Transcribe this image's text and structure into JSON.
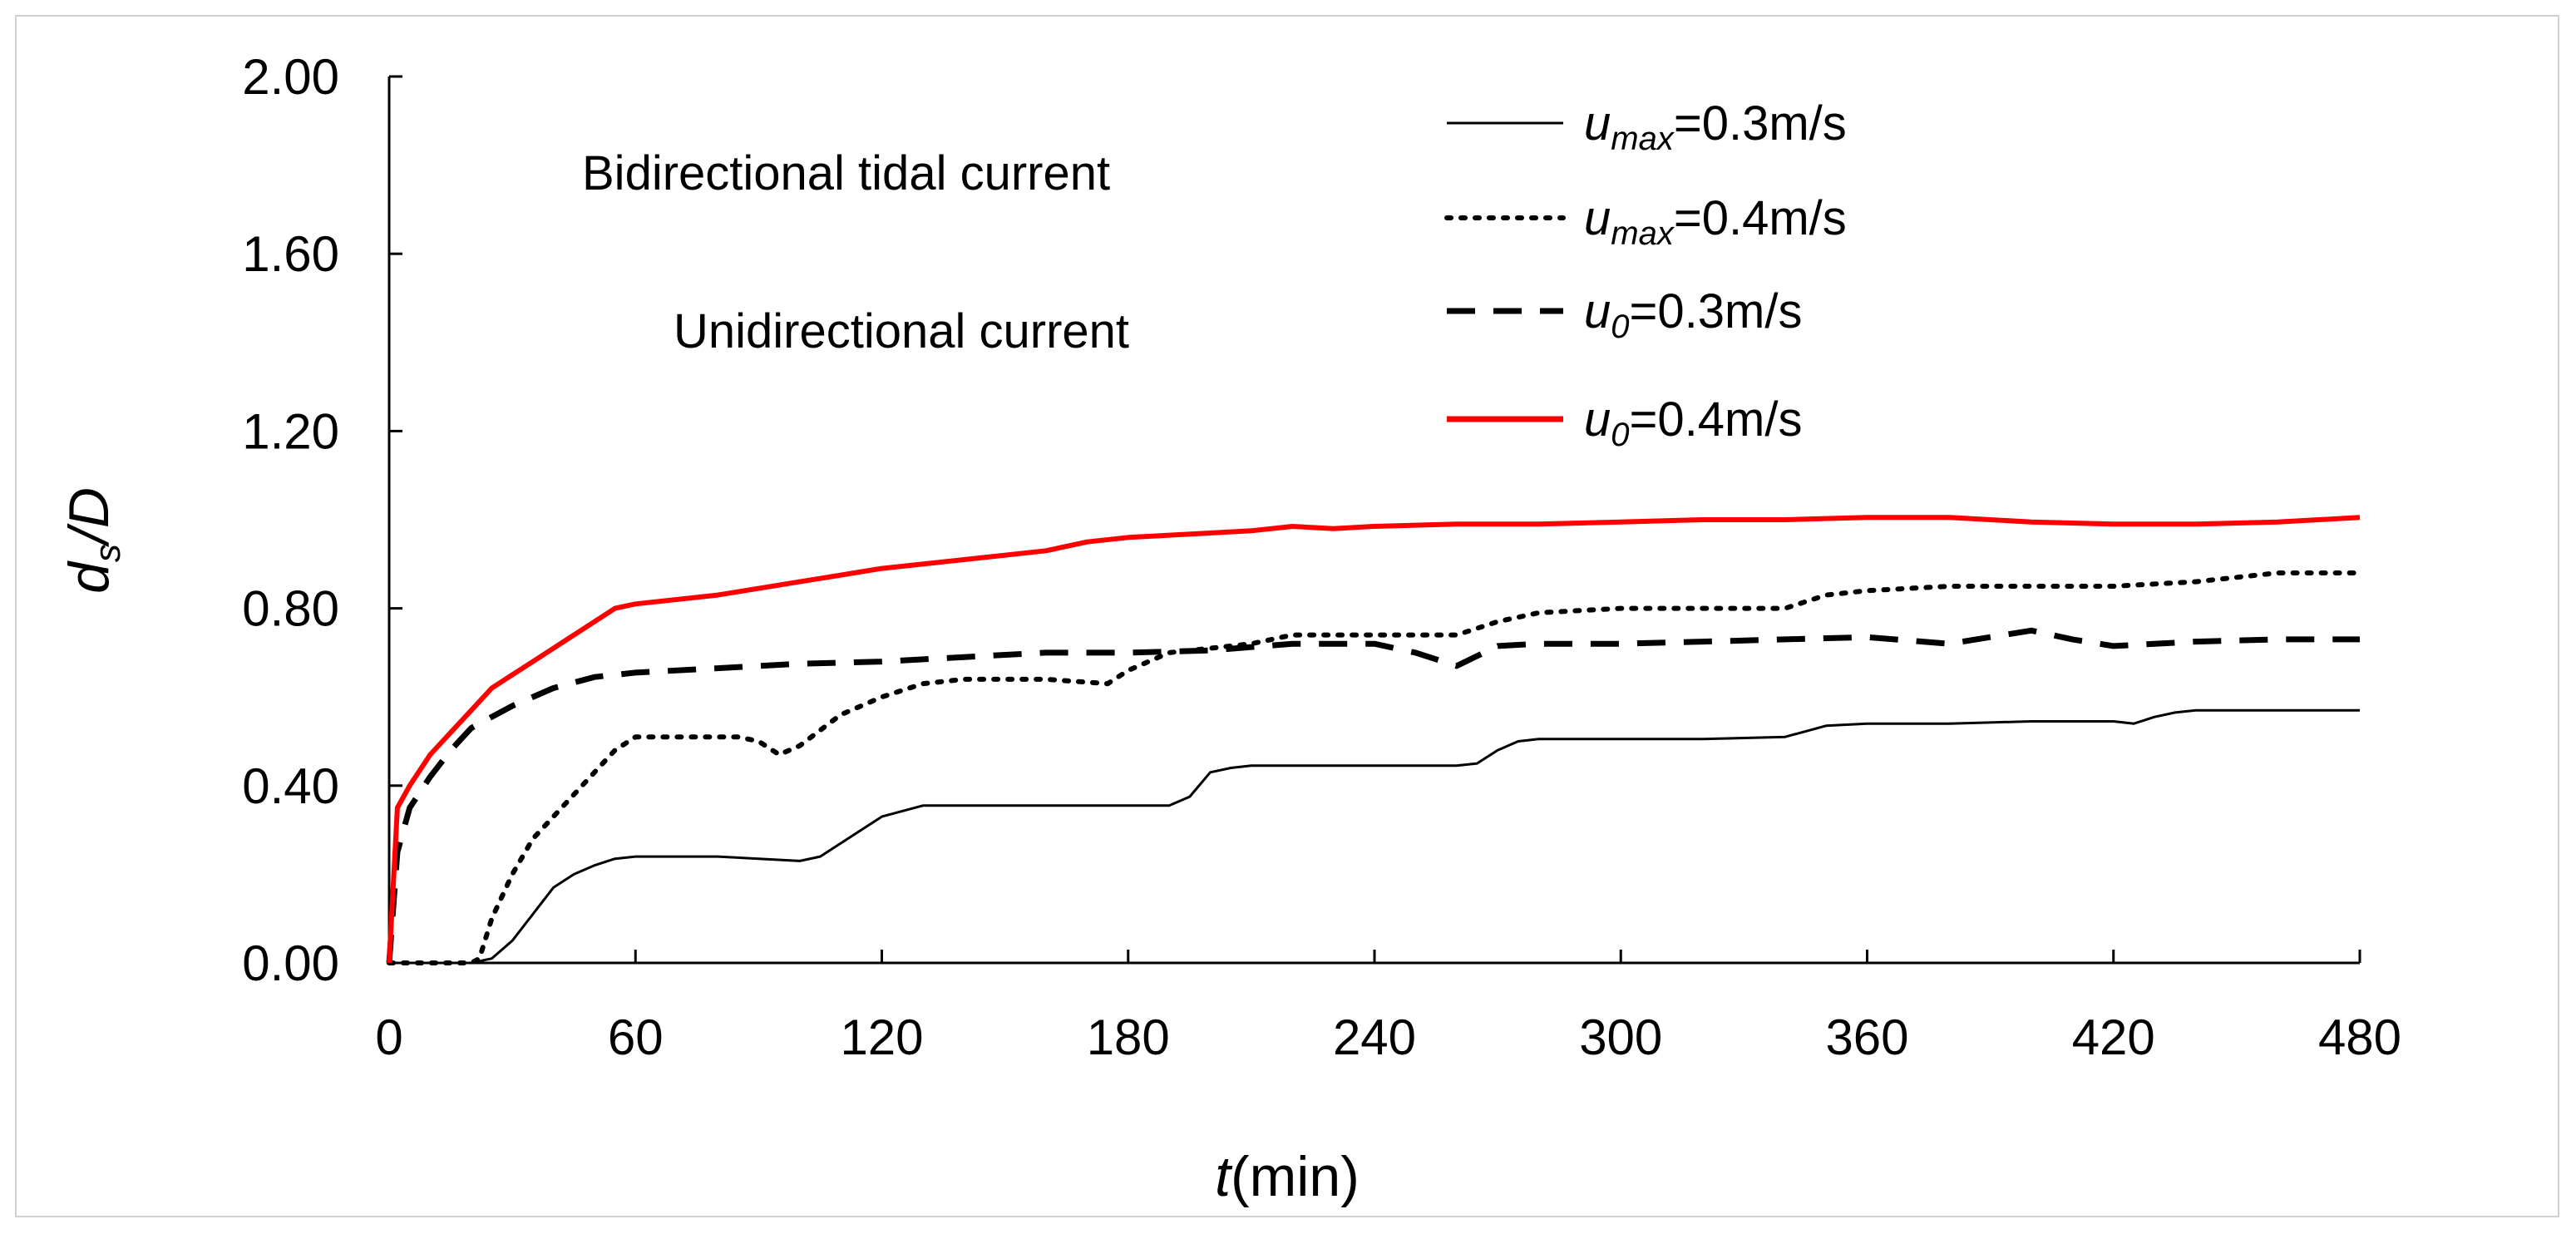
{
  "chart_data": {
    "type": "line",
    "xlabel": {
      "var": "t",
      "unit": "(min)"
    },
    "ylabel": {
      "var": "d",
      "sub": "s",
      "rest": "/D"
    },
    "xlim": [
      0,
      480
    ],
    "ylim": [
      0,
      2.0
    ],
    "x_ticks": [
      "0",
      "60",
      "120",
      "180",
      "240",
      "300",
      "360",
      "420",
      "480"
    ],
    "y_ticks": [
      "0.00",
      "0.40",
      "0.80",
      "1.20",
      "1.60",
      "2.00"
    ],
    "grid": false,
    "legend_position": "top-right",
    "annotations": {
      "bidirectional": "Bidirectional tidal current",
      "unidirectional": "Unidirectional current"
    },
    "series": [
      {
        "label": {
          "var": "u",
          "sub": "max",
          "rest": "=0.3m/s"
        },
        "color": "#000000",
        "style": "solid",
        "x": [
          0,
          20,
          25,
          30,
          35,
          40,
          45,
          50,
          55,
          60,
          70,
          80,
          90,
          100,
          105,
          110,
          120,
          130,
          140,
          160,
          180,
          190,
          195,
          200,
          205,
          210,
          220,
          240,
          260,
          265,
          270,
          275,
          280,
          300,
          320,
          340,
          350,
          360,
          380,
          400,
          420,
          425,
          430,
          435,
          440,
          460,
          480
        ],
        "y": [
          0,
          0,
          0.01,
          0.05,
          0.11,
          0.17,
          0.2,
          0.22,
          0.235,
          0.24,
          0.24,
          0.24,
          0.235,
          0.23,
          0.24,
          0.27,
          0.33,
          0.355,
          0.355,
          0.355,
          0.355,
          0.355,
          0.375,
          0.43,
          0.44,
          0.445,
          0.445,
          0.445,
          0.445,
          0.45,
          0.48,
          0.5,
          0.505,
          0.505,
          0.505,
          0.51,
          0.535,
          0.54,
          0.54,
          0.545,
          0.545,
          0.54,
          0.555,
          0.565,
          0.57,
          0.57,
          0.57
        ]
      },
      {
        "label": {
          "var": "u",
          "sub": "max",
          "rest": "=0.4m/s"
        },
        "color": "#000000",
        "style": "dotted",
        "x": [
          0,
          20,
          22,
          25,
          30,
          35,
          40,
          45,
          50,
          55,
          60,
          70,
          80,
          85,
          90,
          95,
          100,
          110,
          120,
          130,
          140,
          160,
          175,
          180,
          190,
          200,
          210,
          220,
          240,
          260,
          270,
          280,
          300,
          320,
          340,
          350,
          360,
          380,
          400,
          420,
          440,
          460,
          480
        ],
        "y": [
          0,
          0,
          0.01,
          0.1,
          0.2,
          0.28,
          0.33,
          0.38,
          0.43,
          0.48,
          0.51,
          0.51,
          0.51,
          0.51,
          0.5,
          0.47,
          0.49,
          0.56,
          0.6,
          0.63,
          0.64,
          0.64,
          0.63,
          0.66,
          0.7,
          0.71,
          0.72,
          0.74,
          0.74,
          0.74,
          0.77,
          0.79,
          0.8,
          0.8,
          0.8,
          0.83,
          0.84,
          0.85,
          0.85,
          0.85,
          0.86,
          0.88,
          0.88
        ]
      },
      {
        "label": {
          "var": "u",
          "sub": "0",
          "rest": "=0.3m/s"
        },
        "color": "#000000",
        "style": "dashed",
        "x": [
          0,
          2,
          5,
          10,
          15,
          20,
          30,
          40,
          50,
          60,
          80,
          100,
          120,
          140,
          160,
          180,
          200,
          220,
          240,
          250,
          260,
          270,
          280,
          300,
          320,
          340,
          360,
          380,
          390,
          400,
          410,
          420,
          440,
          460,
          480
        ],
        "y": [
          0,
          0.25,
          0.35,
          0.42,
          0.48,
          0.53,
          0.58,
          0.62,
          0.645,
          0.655,
          0.665,
          0.675,
          0.68,
          0.69,
          0.7,
          0.7,
          0.705,
          0.72,
          0.72,
          0.7,
          0.67,
          0.715,
          0.72,
          0.72,
          0.725,
          0.73,
          0.735,
          0.72,
          0.735,
          0.75,
          0.73,
          0.715,
          0.725,
          0.73,
          0.73
        ]
      },
      {
        "label": {
          "var": "u",
          "sub": "0",
          "rest": "=0.4m/s"
        },
        "color": "#ff0000",
        "style": "solid",
        "x": [
          0,
          2,
          5,
          10,
          15,
          20,
          25,
          30,
          35,
          40,
          45,
          50,
          55,
          60,
          80,
          100,
          120,
          140,
          160,
          170,
          180,
          200,
          210,
          220,
          230,
          240,
          260,
          280,
          300,
          320,
          340,
          360,
          380,
          400,
          420,
          440,
          460,
          480
        ],
        "y": [
          0,
          0.35,
          0.4,
          0.47,
          0.52,
          0.57,
          0.62,
          0.65,
          0.68,
          0.71,
          0.74,
          0.77,
          0.8,
          0.81,
          0.83,
          0.86,
          0.89,
          0.91,
          0.93,
          0.95,
          0.96,
          0.97,
          0.975,
          0.985,
          0.98,
          0.985,
          0.99,
          0.99,
          0.995,
          1.0,
          1.0,
          1.005,
          1.005,
          0.995,
          0.99,
          0.99,
          0.995,
          1.005
        ]
      }
    ]
  }
}
